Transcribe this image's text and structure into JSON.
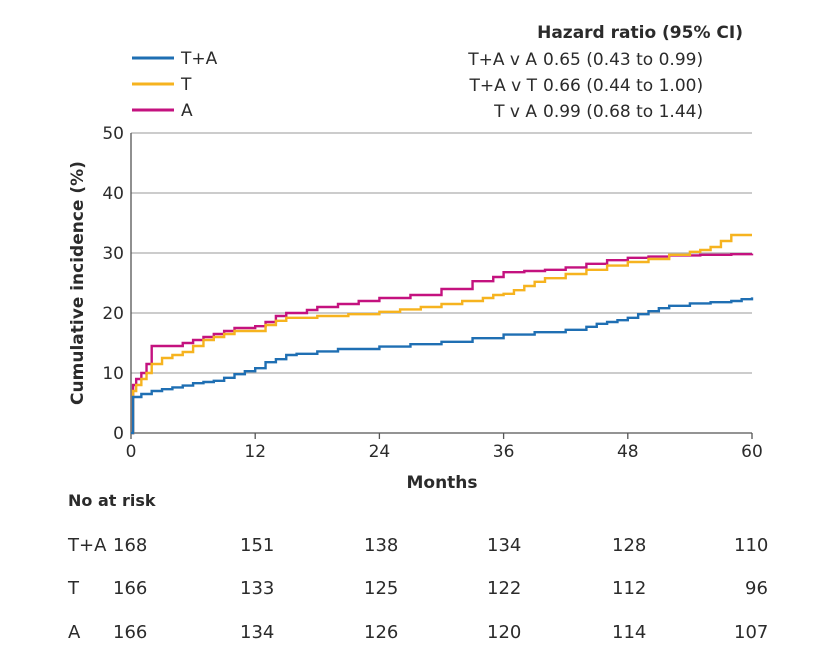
{
  "chart_data": {
    "type": "line",
    "step": true,
    "xlabel": "Months",
    "ylabel": "Cumulative incidence (%)",
    "xlim": [
      0,
      60
    ],
    "ylim": [
      0,
      50
    ],
    "xticks": [
      0,
      12,
      24,
      36,
      48,
      60
    ],
    "yticks": [
      0,
      10,
      20,
      30,
      40,
      50
    ],
    "grid": "horizontal",
    "legend_position": "top-left",
    "series": [
      {
        "name": "T+A",
        "color": "#1f6fb3",
        "x": [
          0,
          0.2,
          1,
          2,
          3,
          4,
          5,
          6,
          7,
          8,
          9,
          10,
          11,
          12,
          13,
          14,
          15,
          16,
          18,
          20,
          24,
          27,
          30,
          33,
          36,
          39,
          42,
          44,
          45,
          46,
          47,
          48,
          49,
          50,
          51,
          52,
          54,
          56,
          58,
          59,
          60
        ],
        "values": [
          0,
          6,
          6.5,
          7,
          7.3,
          7.6,
          7.9,
          8.3,
          8.5,
          8.7,
          9.2,
          9.8,
          10.3,
          10.8,
          11.8,
          12.3,
          13,
          13.2,
          13.6,
          14,
          14.4,
          14.8,
          15.2,
          15.8,
          16.4,
          16.8,
          17.2,
          17.7,
          18.2,
          18.5,
          18.8,
          19.2,
          19.8,
          20.3,
          20.8,
          21.2,
          21.6,
          21.8,
          22,
          22.3,
          22.6
        ]
      },
      {
        "name": "T",
        "color": "#f6b31f",
        "x": [
          0,
          0.2,
          0.5,
          1,
          1.5,
          2,
          3,
          4,
          5,
          6,
          7,
          8,
          9,
          10,
          11,
          12,
          13,
          14,
          15,
          18,
          21,
          24,
          26,
          28,
          30,
          32,
          34,
          35,
          36,
          37,
          38,
          39,
          40,
          42,
          44,
          46,
          48,
          50,
          52,
          54,
          55,
          56,
          57,
          58,
          60
        ],
        "values": [
          0,
          7,
          8,
          9,
          10,
          11.5,
          12.5,
          13,
          13.5,
          14.5,
          15.5,
          16,
          16.5,
          17,
          17,
          17,
          18,
          18.7,
          19.2,
          19.5,
          19.8,
          20.2,
          20.6,
          21,
          21.5,
          22,
          22.5,
          23,
          23.2,
          23.8,
          24.5,
          25.2,
          25.8,
          26.5,
          27.2,
          27.9,
          28.5,
          29,
          29.7,
          30.2,
          30.5,
          31,
          32,
          33,
          33
        ]
      },
      {
        "name": "A",
        "color": "#c4127f",
        "x": [
          0,
          0.2,
          0.5,
          1,
          1.5,
          2,
          3,
          4,
          5,
          6,
          7,
          8,
          9,
          10,
          12,
          13,
          14,
          15,
          17,
          18,
          20,
          22,
          24,
          27,
          30,
          33,
          35,
          36,
          38,
          40,
          42,
          44,
          46,
          48,
          50,
          52,
          55,
          58,
          60
        ],
        "values": [
          0,
          8,
          9,
          10,
          11.5,
          14.5,
          14.5,
          14.5,
          15,
          15.5,
          16,
          16.5,
          17,
          17.5,
          17.8,
          18.5,
          19.5,
          20,
          20.5,
          21,
          21.5,
          22,
          22.5,
          23,
          24,
          25.3,
          26,
          26.8,
          27,
          27.2,
          27.6,
          28.2,
          28.8,
          29.2,
          29.4,
          29.6,
          29.7,
          29.8,
          29.9
        ]
      }
    ]
  },
  "hazard": {
    "header": "Hazard ratio (95% CI)",
    "rows": [
      {
        "comparison": "T+A v A",
        "value": "0.65 (0.43 to 0.99)"
      },
      {
        "comparison": "T+A v T",
        "value": "0.66 (0.44 to 1.00)"
      },
      {
        "comparison": "T v A",
        "value": "0.99 (0.68 to 1.44)"
      }
    ]
  },
  "risk_table": {
    "title": "No at risk",
    "rows": [
      {
        "label": "T+A",
        "values": [
          "168",
          "151",
          "138",
          "134",
          "128",
          "110"
        ]
      },
      {
        "label": "T",
        "values": [
          "166",
          "133",
          "125",
          "122",
          "112",
          "96"
        ]
      },
      {
        "label": "A",
        "values": [
          "166",
          "134",
          "126",
          "120",
          "114",
          "107"
        ]
      }
    ]
  }
}
